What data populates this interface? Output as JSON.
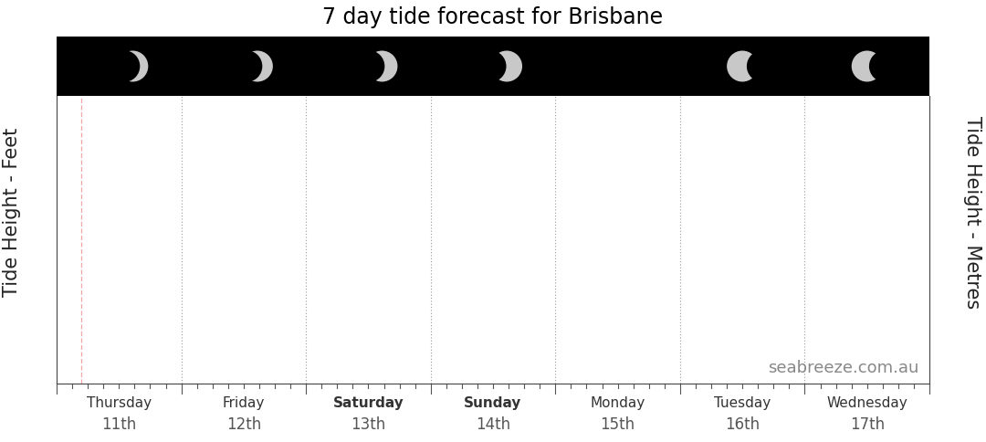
{
  "chart_data": {
    "type": "line",
    "title": "7 day tide forecast for Brisbane",
    "y_label": "Tide Height - Feet",
    "y2_label": "Tide Height - Metres",
    "categories": [
      "Thursday",
      "Friday",
      "Saturday",
      "Sunday",
      "Monday",
      "Tuesday",
      "Wednesday"
    ],
    "dates": [
      "11th",
      "12th",
      "13th",
      "14th",
      "15th",
      "16th",
      "17th"
    ],
    "annotation": "seabreeze.com.au",
    "tick_labels": "x"
  }
}
